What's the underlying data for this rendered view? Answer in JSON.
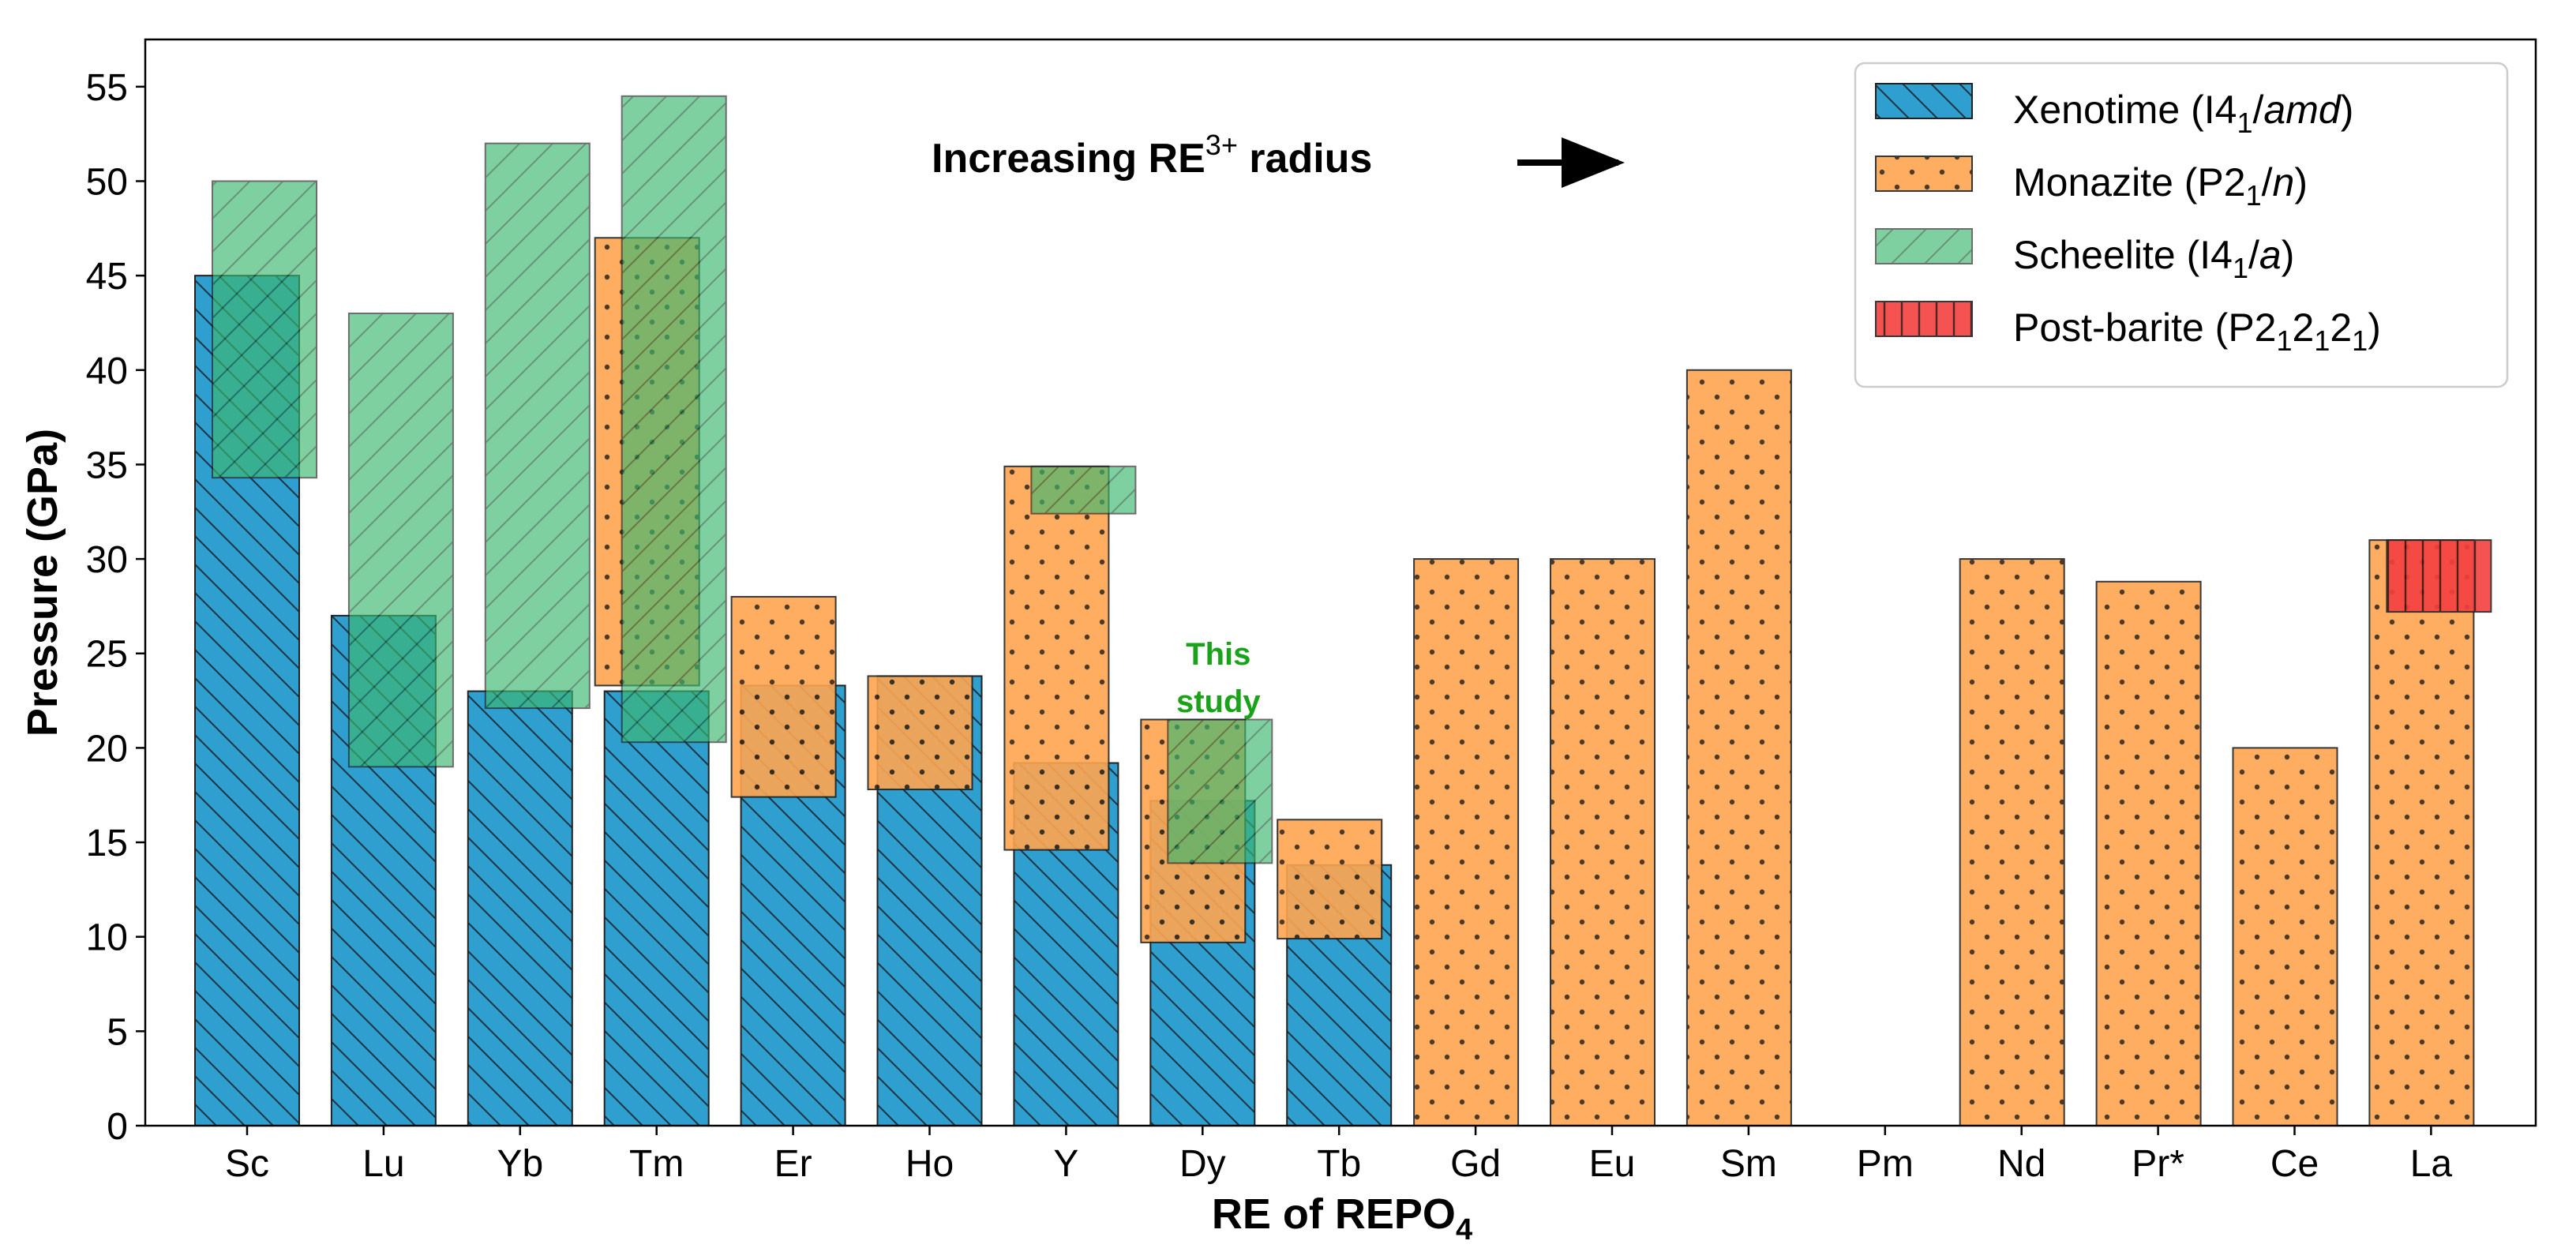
{
  "chart_data": {
    "type": "bar",
    "xlabel": "RE of REPO",
    "xlabel_sub": "4",
    "ylabel": "Pressure (GPa)",
    "ylim": [
      0,
      57.5
    ],
    "yticks": [
      0,
      5,
      10,
      15,
      20,
      25,
      30,
      35,
      40,
      45,
      50,
      55
    ],
    "categories": [
      "Sc",
      "Lu",
      "Yb",
      "Tm",
      "Er",
      "Ho",
      "Y",
      "Dy",
      "Tb",
      "Gd",
      "Eu",
      "Sm",
      "Pm",
      "Nd",
      "Pr*",
      "Ce",
      "La"
    ],
    "series": [
      {
        "name": "Xenotime",
        "key": "xenotime",
        "color": "#2e9fcf",
        "bars": [
          {
            "cat": "Sc",
            "bottom": 0,
            "top": 45
          },
          {
            "cat": "Lu",
            "bottom": 0,
            "top": 27
          },
          {
            "cat": "Yb",
            "bottom": 0,
            "top": 23
          },
          {
            "cat": "Tm",
            "bottom": 0,
            "top": 23
          },
          {
            "cat": "Er",
            "bottom": 0,
            "top": 23.3
          },
          {
            "cat": "Ho",
            "bottom": 0,
            "top": 23.8
          },
          {
            "cat": "Y",
            "bottom": 0,
            "top": 19.2
          },
          {
            "cat": "Dy",
            "bottom": 0,
            "top": 17.2
          },
          {
            "cat": "Tb",
            "bottom": 0,
            "top": 13.8
          }
        ]
      },
      {
        "name": "Monazite",
        "key": "monazite",
        "color": "#ffa54f",
        "bars": [
          {
            "cat": "Tm",
            "bottom": 23.3,
            "top": 47
          },
          {
            "cat": "Er",
            "bottom": 17.4,
            "top": 28
          },
          {
            "cat": "Ho",
            "bottom": 17.8,
            "top": 23.8
          },
          {
            "cat": "Y",
            "bottom": 14.6,
            "top": 34.9
          },
          {
            "cat": "Dy",
            "bottom": 9.7,
            "top": 21.5
          },
          {
            "cat": "Tb",
            "bottom": 9.9,
            "top": 16.2
          },
          {
            "cat": "Gd",
            "bottom": 0,
            "top": 30
          },
          {
            "cat": "Eu",
            "bottom": 0,
            "top": 30
          },
          {
            "cat": "Sm",
            "bottom": 0,
            "top": 40
          },
          {
            "cat": "Nd",
            "bottom": 0,
            "top": 30
          },
          {
            "cat": "Pr*",
            "bottom": 0,
            "top": 28.8
          },
          {
            "cat": "Ce",
            "bottom": 0,
            "top": 20
          },
          {
            "cat": "La",
            "bottom": 0,
            "top": 31
          }
        ]
      },
      {
        "name": "Scheelite",
        "key": "scheelite",
        "color": "#3cb870",
        "bars": [
          {
            "cat": "Sc",
            "bottom": 34.3,
            "top": 50
          },
          {
            "cat": "Lu",
            "bottom": 19,
            "top": 43
          },
          {
            "cat": "Yb",
            "bottom": 22.1,
            "top": 52
          },
          {
            "cat": "Tm",
            "bottom": 20.3,
            "top": 54.5
          },
          {
            "cat": "Y",
            "bottom": 32.4,
            "top": 34.9
          },
          {
            "cat": "Dy",
            "bottom": 13.9,
            "top": 21.5
          }
        ]
      },
      {
        "name": "Post-barite",
        "key": "postbarite",
        "color": "#f44040",
        "bars": [
          {
            "cat": "La",
            "bottom": 27.2,
            "top": 31
          }
        ]
      }
    ],
    "legend": {
      "position": "top-right",
      "entries": [
        {
          "key": "xenotime",
          "name": "Xenotime",
          "open": " (I4",
          "sub": "1",
          "slash": "/",
          "ital": "amd",
          "close": ")"
        },
        {
          "key": "monazite",
          "name": "Monazite",
          "open": " (P2",
          "sub": "1",
          "slash": "/",
          "ital": "n",
          "close": ")"
        },
        {
          "key": "scheelite",
          "name": "Scheelite",
          "open": " (I4",
          "sub": "1",
          "slash": "/",
          "ital": "a",
          "close": ")"
        },
        {
          "key": "postbarite",
          "name": "Post-barite",
          "open": " (P2",
          "sub": "1",
          "mid1": "2",
          "sub2": "1",
          "mid2": "2",
          "sub3": "1",
          "close": ")"
        }
      ]
    },
    "annotations": {
      "arrow_text_main": "Increasing RE",
      "arrow_text_sup": "3+",
      "arrow_text_tail": " radius",
      "this_study_line1": "This",
      "this_study_line2": "study",
      "this_study_color": "#1aa31a"
    }
  }
}
